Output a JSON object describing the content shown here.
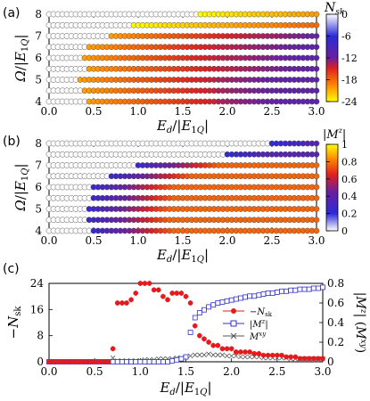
{
  "colors": {
    "scale_low": "#ffff00",
    "scale_mid1": "#ff8000",
    "scale_mid2": "#e02020",
    "scale_mid3": "#6a1fa0",
    "scale_high": "#2a2ad8",
    "scale_white": "#ffffff",
    "red": "#e41a1c",
    "blue": "#2f2fcf",
    "gray": "#555555"
  },
  "chart_data": [
    {
      "type": "heatmap",
      "panel_label": "(a)",
      "xlabel": "E_d/|E_1Q|",
      "ylabel": "Ω/|E_1Q|",
      "x_range": [
        0,
        3.0
      ],
      "y_range": [
        4,
        8
      ],
      "x_ticks": [
        "0.0",
        "0.5",
        "1.0",
        "1.5",
        "2.0",
        "2.5",
        "3.0"
      ],
      "y_ticks": [
        "4",
        "5",
        "6",
        "7",
        "8"
      ],
      "y_rows": [
        4.0,
        4.5,
        5.0,
        5.5,
        6.0,
        6.5,
        7.0,
        7.5,
        8.0
      ],
      "onset": [
        0.45,
        0.4,
        0.35,
        0.45,
        0.4,
        0.45,
        0.7,
        0.95,
        1.7
      ],
      "colorbar": {
        "title": "N_sk",
        "range": [
          -24,
          0
        ],
        "ticks": [
          "0",
          "-6",
          "-12",
          "-18",
          "-24"
        ]
      },
      "description": "Skyrmion number N_sk on the (E_d, Ω) grid; open circles = 0"
    },
    {
      "type": "heatmap",
      "panel_label": "(b)",
      "xlabel": "E_d/|E_1Q|",
      "ylabel": "Ω/|E_1Q|",
      "x_range": [
        0,
        3.0
      ],
      "y_range": [
        4,
        8
      ],
      "x_ticks": [
        "0.0",
        "0.5",
        "1.0",
        "1.5",
        "2.0",
        "2.5",
        "3.0"
      ],
      "y_ticks": [
        "4",
        "5",
        "6",
        "7",
        "8"
      ],
      "y_rows": [
        4.0,
        4.5,
        5.0,
        5.5,
        6.0,
        6.5,
        7.0,
        7.5,
        8.0
      ],
      "onset": [
        0.5,
        0.45,
        0.45,
        0.5,
        0.5,
        0.7,
        1.0,
        2.0,
        2.5
      ],
      "colorbar": {
        "title": "|M^z|",
        "range": [
          0,
          1
        ],
        "ticks": [
          "1",
          "0.8",
          "0.6",
          "0.4",
          "0.2",
          "0"
        ]
      },
      "description": "Magnetization |M^z| on the (E_d, Ω) grid"
    },
    {
      "type": "scatter",
      "panel_label": "(c)",
      "xlabel": "E_d/|E_1Q|",
      "ylabel_left": "−N_sk",
      "ylabel_right": "|M^z| (M^xy)",
      "x_range": [
        0,
        3.0
      ],
      "y_left_range": [
        0,
        24
      ],
      "y_right_range": [
        0,
        0.8
      ],
      "x_ticks": [
        "0.0",
        "0.5",
        "1.0",
        "1.5",
        "2.0",
        "2.5",
        "3.0"
      ],
      "y_left_ticks": [
        "0",
        "8",
        "16",
        "24"
      ],
      "y_right_ticks": [
        "0",
        "0.2",
        "0.4",
        "0.6",
        "0.8"
      ],
      "series": [
        {
          "name": "−N_sk",
          "axis": "left",
          "marker": "circle",
          "x": [
            0,
            0.05,
            0.1,
            0.15,
            0.2,
            0.25,
            0.3,
            0.35,
            0.4,
            0.45,
            0.5,
            0.55,
            0.6,
            0.65,
            0.7,
            0.75,
            0.8,
            0.85,
            0.9,
            0.95,
            1.0,
            1.05,
            1.1,
            1.15,
            1.2,
            1.25,
            1.3,
            1.35,
            1.4,
            1.45,
            1.5,
            1.55,
            1.6,
            1.65,
            1.7,
            1.75,
            1.8,
            1.85,
            1.9,
            1.95,
            2.0,
            2.05,
            2.1,
            2.15,
            2.2,
            2.25,
            2.3,
            2.35,
            2.4,
            2.45,
            2.5,
            2.55,
            2.6,
            2.65,
            2.7,
            2.75,
            2.8,
            2.85,
            2.9,
            2.95,
            3.0
          ],
          "y": [
            0,
            0,
            0,
            0,
            0,
            0,
            0,
            0,
            0,
            0,
            0,
            0,
            0,
            0,
            4,
            18,
            18,
            18,
            19,
            21,
            24,
            24,
            24,
            22,
            22,
            20,
            19,
            21,
            21,
            21,
            20,
            18,
            11,
            8,
            7,
            6,
            5,
            5,
            4,
            4,
            4,
            3,
            3,
            3,
            3,
            2.5,
            2.5,
            2,
            2,
            2,
            2,
            2,
            1.5,
            1.5,
            1.5,
            1,
            1,
            1,
            1,
            1,
            1
          ]
        },
        {
          "name": "|M^z|",
          "axis": "right",
          "marker": "square",
          "x": [
            0,
            0.05,
            0.1,
            0.15,
            0.2,
            0.25,
            0.3,
            0.35,
            0.4,
            0.45,
            0.5,
            0.55,
            0.6,
            0.65,
            0.7,
            0.75,
            0.8,
            0.85,
            0.9,
            0.95,
            1.0,
            1.05,
            1.1,
            1.15,
            1.2,
            1.25,
            1.3,
            1.35,
            1.4,
            1.45,
            1.5,
            1.55,
            1.6,
            1.65,
            1.7,
            1.75,
            1.8,
            1.85,
            1.9,
            1.95,
            2.0,
            2.05,
            2.1,
            2.15,
            2.2,
            2.25,
            2.3,
            2.35,
            2.4,
            2.45,
            2.5,
            2.55,
            2.6,
            2.65,
            2.7,
            2.75,
            2.8,
            2.85,
            2.9,
            2.95,
            3.0
          ],
          "y": [
            0,
            0,
            0,
            0,
            0,
            0,
            0,
            0,
            0,
            0,
            0,
            0,
            0,
            0,
            0,
            0,
            0,
            0,
            0,
            0,
            0,
            0,
            0,
            0,
            0,
            0,
            0,
            0.01,
            0.02,
            0.03,
            0.05,
            0.3,
            0.45,
            0.5,
            0.53,
            0.56,
            0.58,
            0.6,
            0.61,
            0.62,
            0.63,
            0.64,
            0.65,
            0.66,
            0.67,
            0.67,
            0.68,
            0.69,
            0.7,
            0.7,
            0.71,
            0.72,
            0.72,
            0.73,
            0.73,
            0.74,
            0.74,
            0.74,
            0.75,
            0.75,
            0.76
          ]
        },
        {
          "name": "M^xy",
          "axis": "right",
          "marker": "cross",
          "x": [
            0,
            0.05,
            0.1,
            0.15,
            0.2,
            0.25,
            0.3,
            0.35,
            0.4,
            0.45,
            0.5,
            0.55,
            0.6,
            0.65,
            0.7,
            0.75,
            0.8,
            0.85,
            0.9,
            0.95,
            1.0,
            1.05,
            1.1,
            1.15,
            1.2,
            1.25,
            1.3,
            1.35,
            1.4,
            1.45,
            1.5,
            1.55,
            1.6,
            1.65,
            1.7,
            1.75,
            1.8,
            1.85,
            1.9,
            1.95,
            2.0,
            2.05,
            2.1,
            2.15,
            2.2,
            2.25,
            2.3,
            2.35,
            2.4,
            2.45,
            2.5,
            2.55,
            2.6,
            2.65,
            2.7,
            2.75,
            2.8,
            2.85,
            2.9,
            2.95,
            3.0
          ],
          "y": [
            0,
            0,
            0,
            0,
            0,
            0,
            0,
            0,
            0,
            0,
            0,
            0,
            0,
            0,
            0.04,
            0.01,
            0.01,
            0.01,
            0.01,
            0.01,
            0.01,
            0.02,
            0.02,
            0.02,
            0.03,
            0.03,
            0.03,
            0.03,
            0.04,
            0.04,
            0.05,
            0.06,
            0.07,
            0.07,
            0.07,
            0.08,
            0.07,
            0.07,
            0.07,
            0.06,
            0.06,
            0.06,
            0.05,
            0.05,
            0.05,
            0.05,
            0.05,
            0.04,
            0.04,
            0.04,
            0.04,
            0.04,
            0.04,
            0.03,
            0.03,
            0.03,
            0.03,
            0.03,
            0.03,
            0.03,
            0.03
          ]
        }
      ],
      "legend": {
        "placement": "center-right",
        "entries": [
          "−N_sk",
          "|M^z|",
          "M^xy"
        ]
      }
    }
  ]
}
